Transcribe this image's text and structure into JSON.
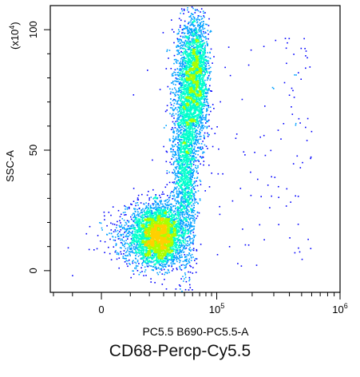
{
  "figure": {
    "caption": "CD68-Percp-Cy5.5"
  },
  "chart_data": {
    "type": "density_scatter",
    "xlabel": "PC5.5 B690-PC5.5-A",
    "ylabel": "SSC-A",
    "y_multiplier_label": "(x10",
    "y_multiplier_exp": "4",
    "y_multiplier_close": ")",
    "x_scale": "biexponential",
    "xlim": [
      -22000,
      1000000
    ],
    "ylim": [
      -9,
      110
    ],
    "x_ticks": [
      {
        "value": 0,
        "label": "0"
      },
      {
        "value": 100000,
        "label": "10",
        "sup": "5"
      },
      {
        "value": 1000000,
        "label": "10",
        "sup": "6"
      }
    ],
    "y_ticks": [
      {
        "value": 0,
        "label": "0"
      },
      {
        "value": 50,
        "label": "50"
      },
      {
        "value": 100,
        "label": "100"
      }
    ],
    "populations": [
      {
        "name": "",
        "x_center": 25000,
        "y_center": 15,
        "x_spread": 9000,
        "y_spread": 6,
        "density": "high",
        "count": 4200
      },
      {
        "name": "",
        "x_center": 50000,
        "y_center": 45,
        "x_spread": 7000,
        "y_spread": 22,
        "density": "medium",
        "count": 2200
      },
      {
        "name": "",
        "x_center": 62000,
        "y_center": 80,
        "x_spread": 10000,
        "y_spread": 13,
        "density": "medium",
        "count": 2600
      }
    ],
    "colormap": [
      "#0000ff",
      "#00a0ff",
      "#00ffcc",
      "#aaff00",
      "#ffd000"
    ],
    "grid": false,
    "legend": "none"
  }
}
